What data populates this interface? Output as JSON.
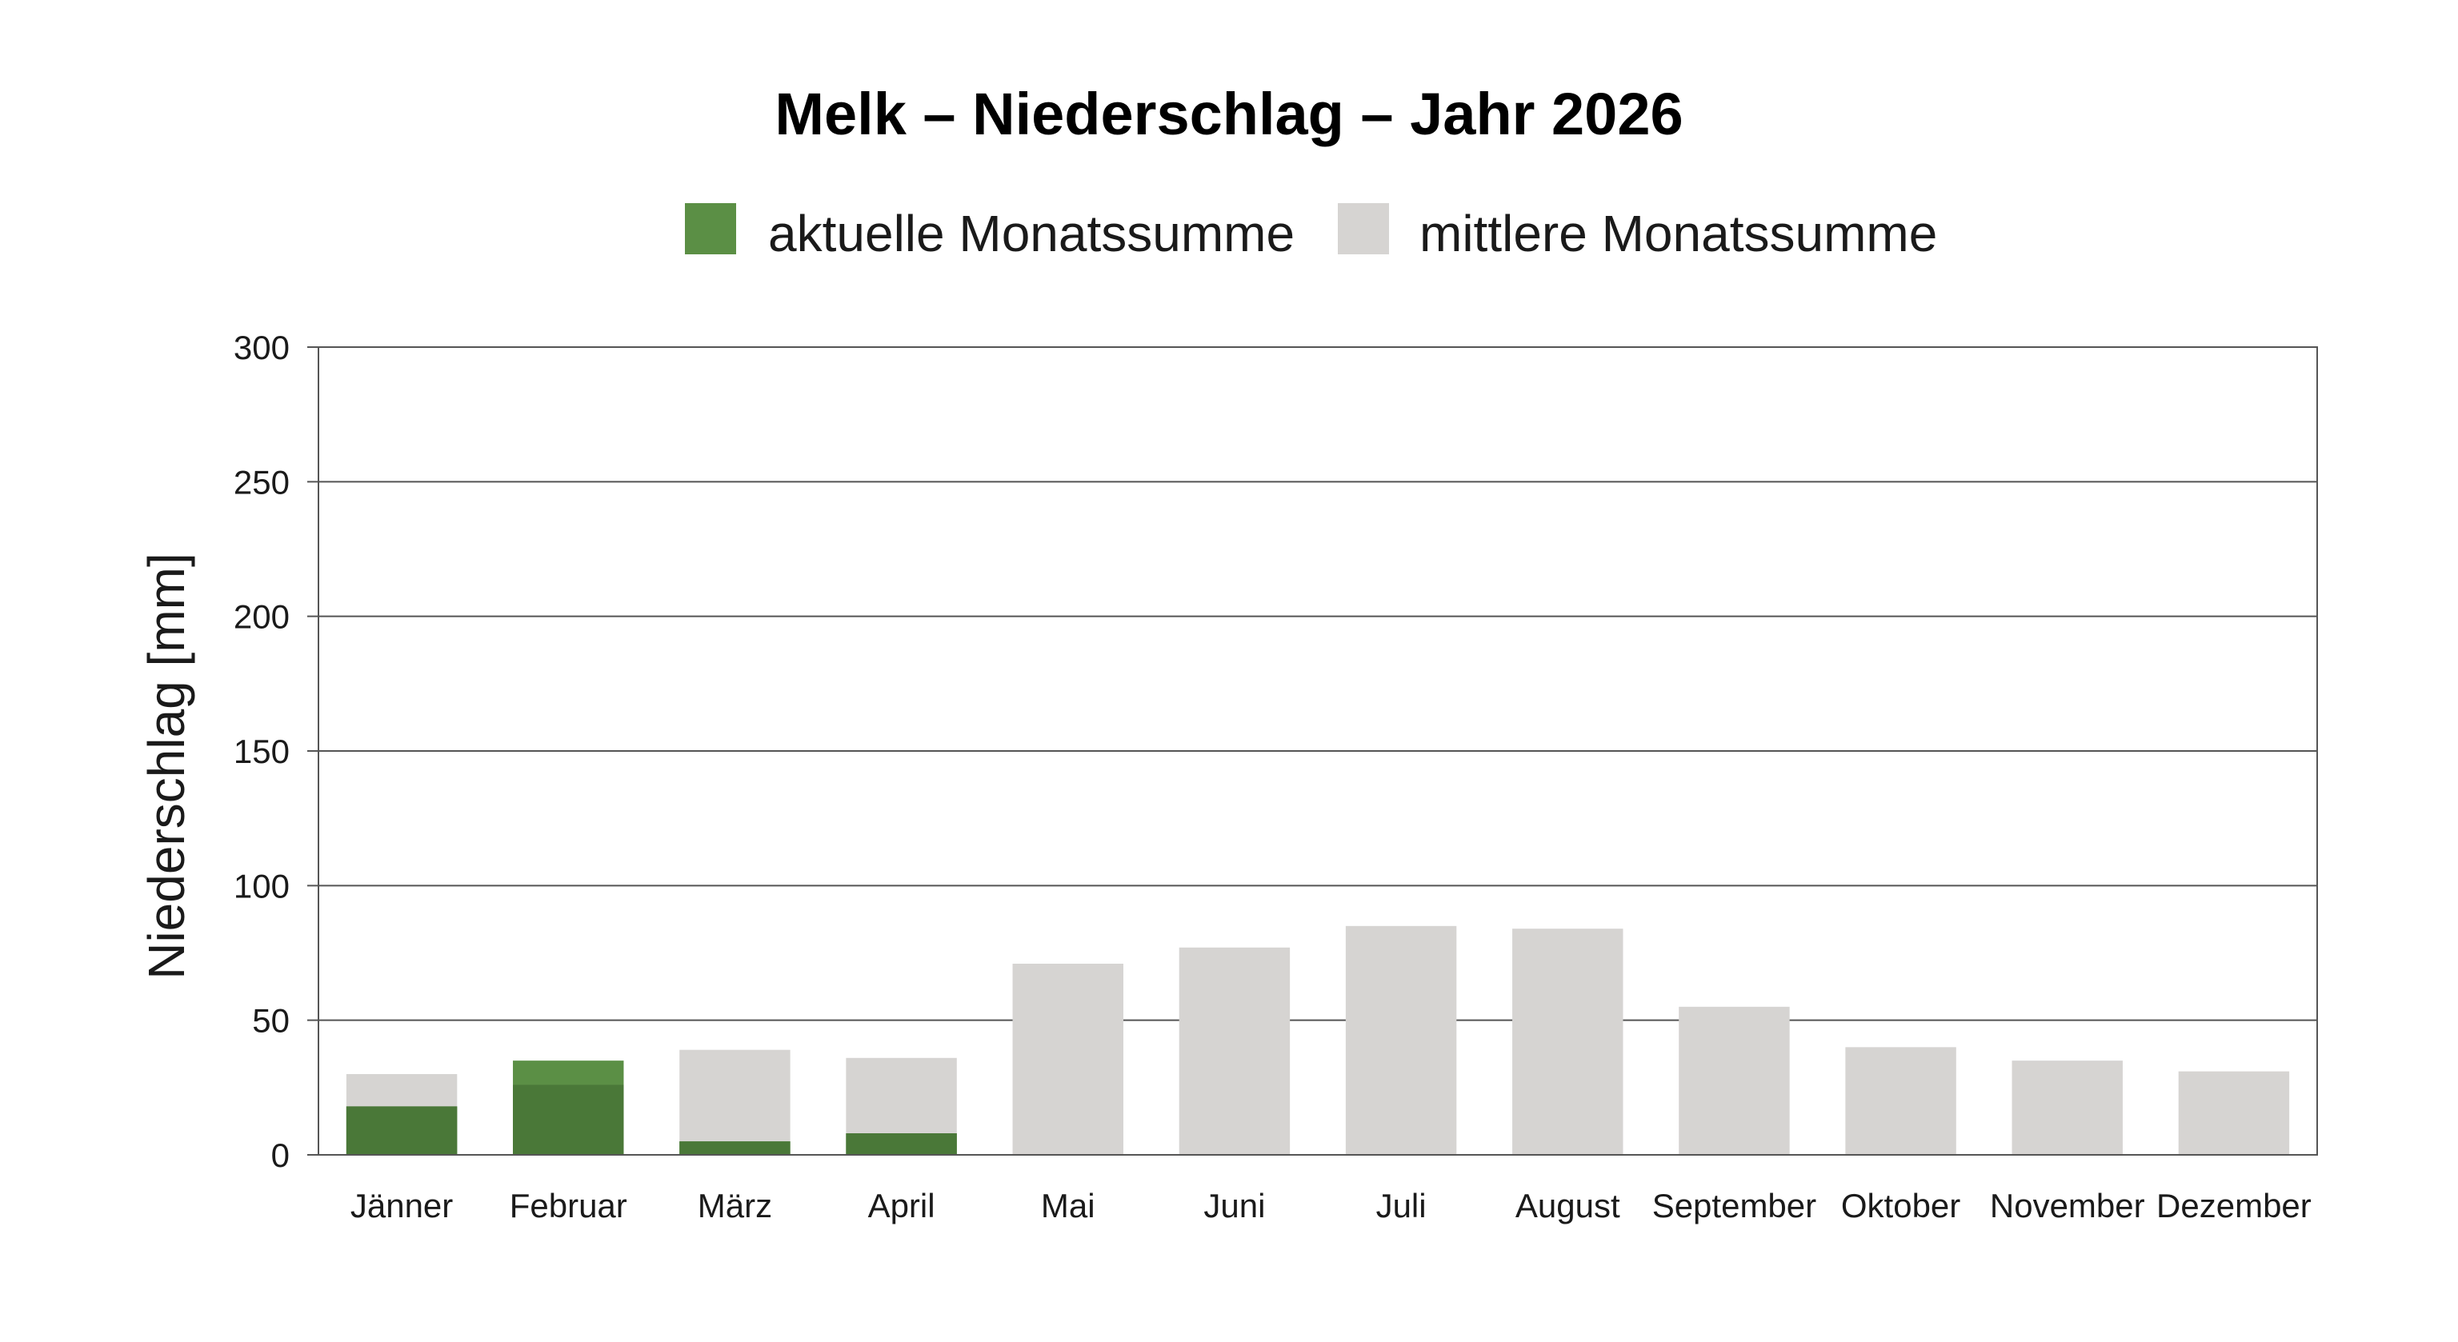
{
  "chart_data": {
    "type": "bar",
    "title": "Melk – Niederschlag – Jahr 2026",
    "xlabel": "",
    "ylabel": "Niederschlag [mm]",
    "ylim": [
      0,
      300
    ],
    "yticks": [
      0,
      50,
      100,
      150,
      200,
      250,
      300
    ],
    "grid": true,
    "legend_position": "top-center",
    "categories": [
      "Jänner",
      "Februar",
      "März",
      "April",
      "Mai",
      "Juni",
      "Juli",
      "August",
      "September",
      "Oktober",
      "November",
      "Dezember"
    ],
    "series": [
      {
        "name": "aktuelle Monatssumme",
        "color": "#5b8f45",
        "values": [
          18,
          35,
          5,
          8,
          null,
          null,
          null,
          null,
          null,
          null,
          null,
          null
        ]
      },
      {
        "name": "mittlere Monatssumme",
        "color": "#d6d4d2",
        "values": [
          30,
          26,
          39,
          36,
          71,
          77,
          85,
          84,
          55,
          40,
          35,
          31
        ]
      }
    ],
    "overlap_color": "#4a7838"
  }
}
